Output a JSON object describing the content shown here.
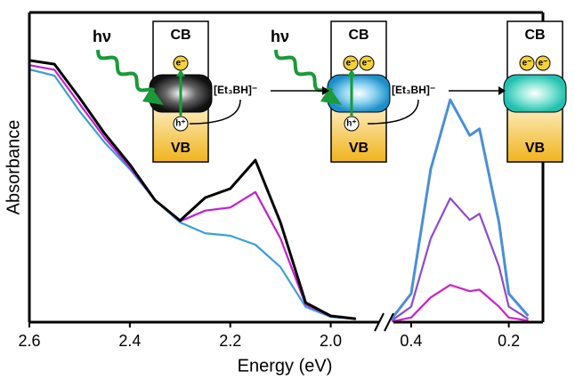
{
  "chart_data": [
    {
      "type": "line",
      "xlabel": "Energy (eV)",
      "ylabel": "Absorbance",
      "x": [
        2.6,
        2.55,
        2.5,
        2.45,
        2.4,
        2.35,
        2.3,
        2.25,
        2.2,
        2.15,
        2.1,
        2.05,
        2.0,
        1.95
      ],
      "series": [
        {
          "color": "#3aa0d8",
          "values": [
            0.816,
            0.796,
            0.681,
            0.58,
            0.494,
            0.394,
            0.322,
            0.287,
            0.279,
            0.25,
            0.178,
            0.049,
            0.017,
            0.011
          ]
        },
        {
          "color": "#c020d0",
          "values": [
            0.83,
            0.815,
            0.705,
            0.595,
            0.5,
            0.394,
            0.326,
            0.36,
            0.37,
            0.42,
            0.27,
            0.057,
            0.019,
            0.011
          ]
        },
        {
          "color": "#000000",
          "values": [
            0.845,
            0.833,
            0.724,
            0.609,
            0.509,
            0.394,
            0.328,
            0.402,
            0.431,
            0.523,
            0.322,
            0.063,
            0.02,
            0.011
          ]
        }
      ],
      "xlim": [
        2.6,
        1.9
      ],
      "ylim": [
        0,
        1
      ],
      "xticks": [
        2.6,
        2.4,
        2.2,
        {
          "value": 2,
          "label": "2.0"
        }
      ]
    },
    {
      "type": "line",
      "x": [
        0.44,
        0.4,
        0.36,
        0.32,
        0.28,
        0.26,
        0.22,
        0.2,
        0.16
      ],
      "series": [
        {
          "color": "#d020c8",
          "values": [
            0.002,
            0.015,
            0.08,
            0.12,
            0.1,
            0.105,
            0.05,
            0.015,
            0.005
          ]
        },
        {
          "color": "#8a4ad0",
          "values": [
            0.005,
            0.05,
            0.27,
            0.4,
            0.33,
            0.35,
            0.18,
            0.05,
            0.01
          ]
        },
        {
          "color": "#4a8fd8",
          "values": [
            0.011,
            0.092,
            0.494,
            0.718,
            0.603,
            0.624,
            0.322,
            0.092,
            0.02
          ]
        }
      ],
      "xlim": [
        0.44,
        0.13
      ],
      "ylim": [
        0,
        1
      ],
      "xticks": [
        0.4,
        0.2
      ]
    }
  ],
  "inset": {
    "stages": [
      {
        "cb": "CB",
        "vb": "VB",
        "light": "hν",
        "electrons": [
          "e⁻"
        ],
        "hole": "h⁺"
      },
      {
        "cb": "CB",
        "vb": "VB",
        "light": "hν",
        "electrons": [
          "e⁻",
          "e⁻"
        ],
        "hole": "h⁺"
      },
      {
        "cb": "CB",
        "vb": "VB",
        "electrons": [
          "e⁻",
          "e⁻"
        ]
      }
    ],
    "reagents": [
      "[Et₃BH]⁻",
      "[Et₃BH]⁻"
    ]
  }
}
